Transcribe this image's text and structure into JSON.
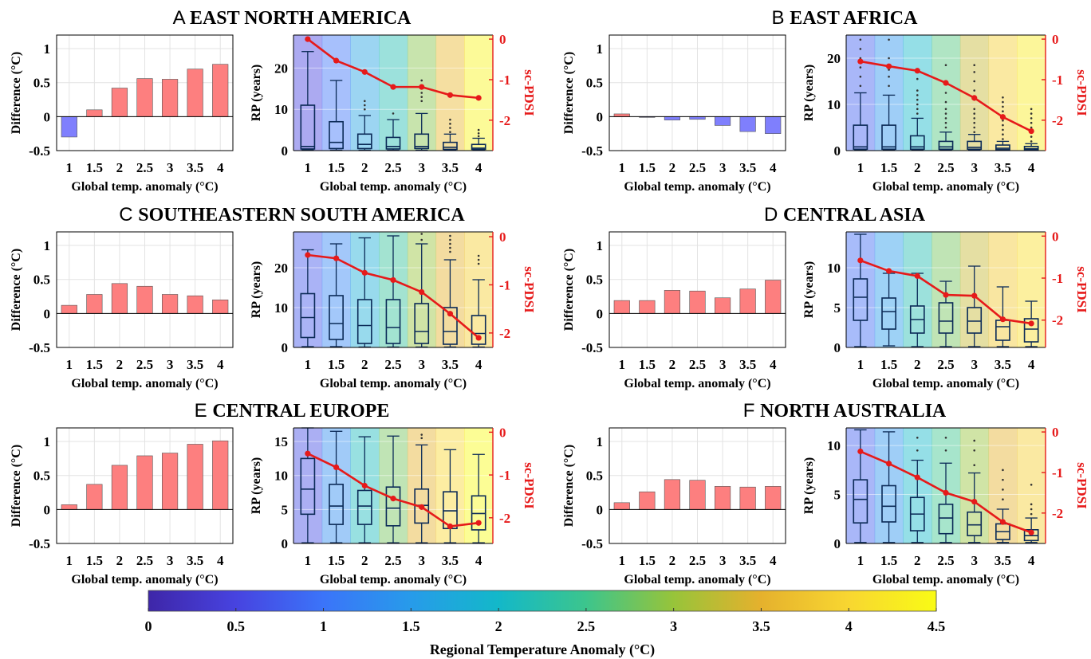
{
  "chart_data": {
    "type": "composite",
    "shared": {
      "x_categories": [
        "1",
        "1.5",
        "2",
        "2.5",
        "3",
        "3.5",
        "4"
      ],
      "xlabel": "Global temp. anomaly (°C)",
      "bar_ylabel": "Difference (°C)",
      "bar_ylim": [
        -0.5,
        1.2
      ],
      "bar_yticks": [
        "-0.5",
        "0",
        "0.5",
        "1"
      ],
      "box_ylabel": "RP (years)",
      "pdsi_ylabel": "sc-PDSI",
      "pdsi_yticks": [
        "-2",
        "-1",
        "0"
      ],
      "positive_bar_color": "#fd7f7f",
      "negative_bar_color": "#7f7ffd",
      "pdsi_color": "#e61a1a"
    },
    "colorbar": {
      "label": "Regional Temperature Anomaly (°C)",
      "ticks": [
        "0",
        "0.5",
        "1",
        "1.5",
        "2",
        "2.5",
        "3",
        "3.5",
        "4",
        "4.5"
      ],
      "range": [
        0,
        4.5
      ]
    },
    "panels": [
      {
        "letter": "A",
        "title": "EAST NORTH AMERICA",
        "bars": [
          -0.3,
          0.1,
          0.42,
          0.56,
          0.55,
          0.7,
          0.77
        ],
        "box_ylim": [
          0,
          28
        ],
        "box_yticks": [
          "0",
          "10",
          "20"
        ],
        "pdsi_ylim": [
          -2.75,
          0.1
        ],
        "pdsi": [
          0.0,
          -0.53,
          -0.81,
          -1.18,
          -1.18,
          -1.38,
          -1.45
        ],
        "regional_temp": [
          0.5,
          1.0,
          1.6,
          2.2,
          2.9,
          3.6,
          4.4
        ],
        "boxes": [
          {
            "min": 0.2,
            "q1": 0.4,
            "median": 1,
            "q3": 11,
            "max": 24,
            "outliers": []
          },
          {
            "min": 0.1,
            "q1": 0.5,
            "median": 2,
            "q3": 7,
            "max": 17,
            "outliers": []
          },
          {
            "min": 0.1,
            "q1": 0.5,
            "median": 1.5,
            "q3": 4,
            "max": 8.5,
            "outliers": [
              10,
              11,
              12
            ]
          },
          {
            "min": 0.1,
            "q1": 0.4,
            "median": 1,
            "q3": 3.2,
            "max": 7.5,
            "outliers": [
              9
            ]
          },
          {
            "min": 0.1,
            "q1": 0.5,
            "median": 1,
            "q3": 4,
            "max": 9,
            "outliers": [
              12,
              13,
              14,
              15.5,
              17
            ]
          },
          {
            "min": 0.1,
            "q1": 0.3,
            "median": 0.8,
            "q3": 2,
            "max": 4,
            "outliers": [
              4.5,
              5.5,
              6.5,
              7.5
            ]
          },
          {
            "min": 0.1,
            "q1": 0.3,
            "median": 0.6,
            "q3": 1.5,
            "max": 3,
            "outliers": [
              3.5,
              4.2,
              5
            ]
          }
        ]
      },
      {
        "letter": "B",
        "title": "EAST AFRICA",
        "bars": [
          0.04,
          -0.01,
          -0.05,
          -0.04,
          -0.13,
          -0.22,
          -0.25
        ],
        "box_ylim": [
          0,
          25
        ],
        "box_yticks": [
          "0",
          "10",
          "20"
        ],
        "pdsi_ylim": [
          -2.75,
          0.1
        ],
        "pdsi": [
          -0.55,
          -0.67,
          -0.78,
          -1.08,
          -1.45,
          -1.92,
          -2.27
        ],
        "regional_temp": [
          0.8,
          1.4,
          2.0,
          2.6,
          3.3,
          3.9,
          4.3
        ],
        "boxes": [
          {
            "min": 0.1,
            "q1": 0.3,
            "median": 0.8,
            "q3": 5.5,
            "max": 12.5,
            "outliers": [
              14,
              16,
              18,
              20,
              22,
              24,
              25.5
            ]
          },
          {
            "min": 0.1,
            "q1": 0.3,
            "median": 0.8,
            "q3": 5.5,
            "max": 12,
            "outliers": [
              14,
              16,
              17.5,
              20,
              24
            ]
          },
          {
            "min": 0.1,
            "q1": 0.3,
            "median": 0.8,
            "q3": 3.2,
            "max": 7,
            "outliers": [
              8,
              9,
              10,
              11,
              12,
              13,
              15.5
            ]
          },
          {
            "min": 0.1,
            "q1": 0.3,
            "median": 0.8,
            "q3": 2,
            "max": 4,
            "outliers": [
              5,
              6,
              7,
              8,
              9,
              10.5,
              12.5,
              18.5
            ]
          },
          {
            "min": 0.1,
            "q1": 0.3,
            "median": 0.7,
            "q3": 2,
            "max": 3.5,
            "outliers": [
              4,
              5,
              6,
              7,
              8,
              9,
              11,
              13,
              15,
              17,
              18.5
            ]
          },
          {
            "min": 0.1,
            "q1": 0.2,
            "median": 0.5,
            "q3": 1.2,
            "max": 2,
            "outliers": [
              2.5,
              3.5,
              4.5,
              5.5,
              6.5,
              7.5,
              8.5,
              9.5,
              10.5,
              11.5
            ]
          },
          {
            "min": 0.1,
            "q1": 0.2,
            "median": 0.4,
            "q3": 0.9,
            "max": 1.5,
            "outliers": [
              2,
              3,
              4,
              5,
              6,
              7,
              8,
              9
            ]
          }
        ]
      },
      {
        "letter": "C",
        "title": "SOUTHEASTERN SOUTH AMERICA",
        "bars": [
          0.12,
          0.28,
          0.44,
          0.4,
          0.28,
          0.26,
          0.2
        ],
        "box_ylim": [
          0,
          29
        ],
        "box_yticks": [
          "0",
          "10",
          "20"
        ],
        "pdsi_ylim": [
          -2.3,
          0.1
        ],
        "pdsi": [
          -0.38,
          -0.45,
          -0.75,
          -0.9,
          -1.15,
          -1.6,
          -2.1
        ],
        "regional_temp": [
          0.7,
          1.2,
          1.8,
          2.4,
          3.0,
          3.5,
          3.9
        ],
        "boxes": [
          {
            "min": 0.2,
            "q1": 2.5,
            "median": 7.5,
            "q3": 13.5,
            "max": 24.5,
            "outliers": []
          },
          {
            "min": 0.2,
            "q1": 2,
            "median": 6,
            "q3": 13,
            "max": 26,
            "outliers": []
          },
          {
            "min": 0.1,
            "q1": 1,
            "median": 5.5,
            "q3": 12,
            "max": 27.5,
            "outliers": []
          },
          {
            "min": 0.1,
            "q1": 1,
            "median": 5,
            "q3": 12,
            "max": 28,
            "outliers": []
          },
          {
            "min": 0.1,
            "q1": 1,
            "median": 4,
            "q3": 11,
            "max": 26,
            "outliers": [
              27,
              28.5
            ]
          },
          {
            "min": 0.1,
            "q1": 0.8,
            "median": 4,
            "q3": 10,
            "max": 22,
            "outliers": [
              24,
              25,
              26,
              27,
              28
            ]
          },
          {
            "min": 0.1,
            "q1": 0.8,
            "median": 3.5,
            "q3": 8,
            "max": 17,
            "outliers": [
              21,
              22,
              23
            ]
          }
        ]
      },
      {
        "letter": "D",
        "title": "CENTRAL ASIA",
        "bars": [
          0.19,
          0.19,
          0.34,
          0.33,
          0.23,
          0.36,
          0.49
        ],
        "box_ylim": [
          0,
          14.5
        ],
        "box_yticks": [
          "0",
          "5",
          "10"
        ],
        "pdsi_ylim": [
          -2.65,
          0.1
        ],
        "pdsi": [
          -0.58,
          -0.83,
          -0.95,
          -1.4,
          -1.42,
          -1.98,
          -2.08
        ],
        "regional_temp": [
          0.9,
          1.5,
          2.2,
          2.8,
          3.3,
          3.8,
          4.1
        ],
        "boxes": [
          {
            "min": 0.1,
            "q1": 3.4,
            "median": 6.3,
            "q3": 8.6,
            "max": 14.2,
            "outliers": []
          },
          {
            "min": 0.2,
            "q1": 2.3,
            "median": 4.5,
            "q3": 6.2,
            "max": 9.3,
            "outliers": []
          },
          {
            "min": 0.1,
            "q1": 1.8,
            "median": 3.5,
            "q3": 5.2,
            "max": 9.3,
            "outliers": []
          },
          {
            "min": 0.1,
            "q1": 1.8,
            "median": 3.3,
            "q3": 5.6,
            "max": 8.3,
            "outliers": []
          },
          {
            "min": 0.1,
            "q1": 1.8,
            "median": 3.3,
            "q3": 5,
            "max": 10.2,
            "outliers": []
          },
          {
            "min": 0.1,
            "q1": 0.9,
            "median": 2.6,
            "q3": 3.4,
            "max": 7.6,
            "outliers": []
          },
          {
            "min": 0.1,
            "q1": 0.7,
            "median": 2.3,
            "q3": 3.6,
            "max": 5.8,
            "outliers": []
          }
        ]
      },
      {
        "letter": "E",
        "title": "CENTRAL EUROPE",
        "bars": [
          0.07,
          0.37,
          0.65,
          0.79,
          0.83,
          0.96,
          1.01
        ],
        "box_ylim": [
          0,
          17
        ],
        "box_yticks": [
          "0",
          "5",
          "10",
          "15"
        ],
        "pdsi_ylim": [
          -2.6,
          0.1
        ],
        "pdsi": [
          -0.5,
          -0.82,
          -1.25,
          -1.55,
          -1.75,
          -2.2,
          -2.12
        ],
        "regional_temp": [
          0.6,
          1.3,
          2.1,
          2.8,
          3.5,
          4.0,
          4.5
        ],
        "boxes": [
          {
            "min": 0.1,
            "q1": 4.3,
            "median": 8,
            "q3": 12.5,
            "max": 17,
            "outliers": []
          },
          {
            "min": 0.1,
            "q1": 2.8,
            "median": 5.5,
            "q3": 8.7,
            "max": 16.5,
            "outliers": []
          },
          {
            "min": 0.1,
            "q1": 2.8,
            "median": 5.5,
            "q3": 7.8,
            "max": 15.7,
            "outliers": []
          },
          {
            "min": 0.1,
            "q1": 2.6,
            "median": 5.2,
            "q3": 8.3,
            "max": 15.8,
            "outliers": []
          },
          {
            "min": 0.1,
            "q1": 3,
            "median": 5.6,
            "q3": 8,
            "max": 14.5,
            "outliers": [
              15.5,
              16
            ]
          },
          {
            "min": 0.1,
            "q1": 2.2,
            "median": 4.8,
            "q3": 7.6,
            "max": 13.8,
            "outliers": []
          },
          {
            "min": 0.1,
            "q1": 2,
            "median": 4.4,
            "q3": 7,
            "max": 13.1,
            "outliers": []
          }
        ]
      },
      {
        "letter": "F",
        "title": "NORTH AUSTRALIA",
        "bars": [
          0.1,
          0.26,
          0.44,
          0.43,
          0.34,
          0.33,
          0.34
        ],
        "box_ylim": [
          0,
          11.8
        ],
        "box_yticks": [
          "0",
          "5",
          "10"
        ],
        "pdsi_ylim": [
          -2.75,
          0.1
        ],
        "pdsi": [
          -0.48,
          -0.78,
          -1.12,
          -1.5,
          -1.72,
          -2.22,
          -2.48
        ],
        "regional_temp": [
          0.8,
          1.4,
          2.0,
          2.5,
          3.0,
          3.5,
          3.9
        ],
        "boxes": [
          {
            "min": 0.1,
            "q1": 2.1,
            "median": 4.5,
            "q3": 6.5,
            "max": 11.6,
            "outliers": []
          },
          {
            "min": 0.1,
            "q1": 2.2,
            "median": 3.8,
            "q3": 5.9,
            "max": 11.4,
            "outliers": []
          },
          {
            "min": 0.1,
            "q1": 1.3,
            "median": 3,
            "q3": 4.7,
            "max": 8.5,
            "outliers": [
              9.5,
              10.8
            ]
          },
          {
            "min": 0.1,
            "q1": 1,
            "median": 2.6,
            "q3": 4,
            "max": 8.2,
            "outliers": [
              9.5,
              10.8
            ]
          },
          {
            "min": 0.1,
            "q1": 0.8,
            "median": 1.9,
            "q3": 3.2,
            "max": 7.2,
            "outliers": [
              8,
              9.5,
              10.5
            ]
          },
          {
            "min": 0.1,
            "q1": 0.4,
            "median": 1.2,
            "q3": 2,
            "max": 3.5,
            "outliers": [
              4.5,
              5.5,
              6.5,
              7.5
            ]
          },
          {
            "min": 0.1,
            "q1": 0.3,
            "median": 0.8,
            "q3": 1.4,
            "max": 2.6,
            "outliers": [
              3,
              3.5,
              4,
              6
            ]
          }
        ]
      }
    ]
  }
}
